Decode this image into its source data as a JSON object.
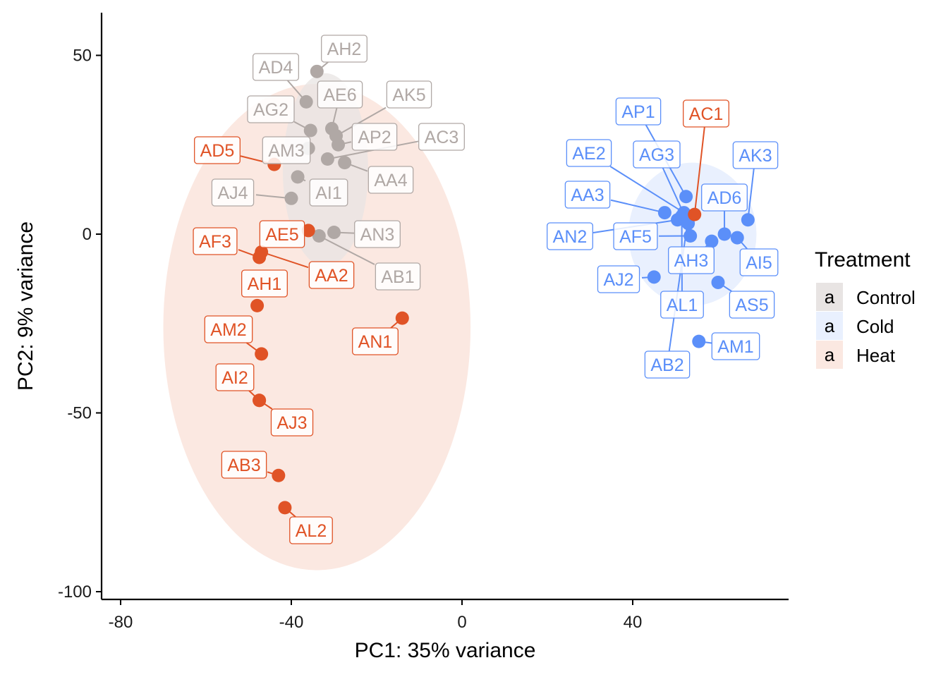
{
  "chart_data": {
    "type": "scatter",
    "xlabel": "PC1: 35% variance",
    "ylabel": "PC2: 9% variance",
    "xlim": [
      -85,
      77
    ],
    "ylim": [
      -102,
      62
    ],
    "xticks": [
      -80,
      -40,
      0,
      40
    ],
    "yticks": [
      50,
      0,
      -50,
      -100
    ],
    "legend": {
      "title": "Treatment",
      "position": "right",
      "entries": [
        {
          "name": "Control",
          "key": "a"
        },
        {
          "name": "Cold",
          "key": "a"
        },
        {
          "name": "Heat",
          "key": "a"
        }
      ]
    },
    "colors": {
      "Control": "#b0a8a5",
      "Cold": "#5b8ff9",
      "Heat": "#e05326"
    },
    "ellipses": [
      {
        "group": "Heat",
        "center": [
          -34,
          -26
        ],
        "radii": [
          36,
          68
        ]
      },
      {
        "group": "Control",
        "center": [
          -32,
          18
        ],
        "radii": [
          10,
          27
        ]
      },
      {
        "group": "Cold",
        "center": [
          54,
          0
        ],
        "radii": [
          15,
          20
        ]
      }
    ],
    "series": [
      {
        "name": "Control",
        "points": [
          {
            "label": "AH2",
            "x": -34,
            "y": 45.5
          },
          {
            "label": "AD4",
            "x": -36.5,
            "y": 37
          },
          {
            "label": "AE6",
            "x": -30.5,
            "y": 29.5
          },
          {
            "label": "AK5",
            "x": -29.5,
            "y": 27.5
          },
          {
            "label": "AG2",
            "x": -35.5,
            "y": 29
          },
          {
            "label": "AP2",
            "x": -29,
            "y": 25
          },
          {
            "label": "AC3",
            "x": -31.5,
            "y": 21
          },
          {
            "label": "AM3",
            "x": -36,
            "y": 24
          },
          {
            "label": "AA4",
            "x": -27.5,
            "y": 20
          },
          {
            "label": "AI1",
            "x": -38.5,
            "y": 16
          },
          {
            "label": "AJ4",
            "x": -40,
            "y": 10
          },
          {
            "label": "AN3",
            "x": -30,
            "y": 0.5
          },
          {
            "label": "AB1",
            "x": -33.5,
            "y": -0.5
          }
        ]
      },
      {
        "name": "Cold",
        "points": [
          {
            "label": "AP1",
            "x": 52.5,
            "y": 10.5
          },
          {
            "label": "AE2",
            "x": 52,
            "y": 6
          },
          {
            "label": "AG3",
            "x": 53,
            "y": 3
          },
          {
            "label": "AK3",
            "x": 67,
            "y": 4
          },
          {
            "label": "AA3",
            "x": 47.5,
            "y": 6
          },
          {
            "label": "AD6",
            "x": 61.5,
            "y": 0
          },
          {
            "label": "AN2",
            "x": 50.5,
            "y": 4
          },
          {
            "label": "AF5",
            "x": 53.5,
            "y": -0.5
          },
          {
            "label": "AH3",
            "x": 58.5,
            "y": -2
          },
          {
            "label": "AI5",
            "x": 64.5,
            "y": -1
          },
          {
            "label": "AJ2",
            "x": 45,
            "y": -12
          },
          {
            "label": "AL1",
            "x": 51.5,
            "y": 5
          },
          {
            "label": "AS5",
            "x": 60,
            "y": -13.5
          },
          {
            "label": "AM1",
            "x": 55.5,
            "y": -30
          },
          {
            "label": "AB2",
            "x": 53,
            "y": 4.5
          }
        ]
      },
      {
        "name": "Heat",
        "points": [
          {
            "label": "AC1",
            "x": 54.5,
            "y": 5.5
          },
          {
            "label": "AD5",
            "x": -44,
            "y": 19.5
          },
          {
            "label": "AE5",
            "x": -36,
            "y": 1
          },
          {
            "label": "AF3",
            "x": -47.5,
            "y": -6.5
          },
          {
            "label": "AA2",
            "x": -47,
            "y": -5
          },
          {
            "label": "AH1",
            "x": -48,
            "y": -20
          },
          {
            "label": "AN1",
            "x": -14,
            "y": -23.5
          },
          {
            "label": "AM2",
            "x": -47,
            "y": -33.5
          },
          {
            "label": "AI2",
            "x": -47.5,
            "y": -46.5
          },
          {
            "label": "AJ3",
            "x": -47.5,
            "y": -46.5
          },
          {
            "label": "AB3",
            "x": -43,
            "y": -67.5
          },
          {
            "label": "AL2",
            "x": -41.5,
            "y": -76.5
          }
        ]
      }
    ]
  }
}
